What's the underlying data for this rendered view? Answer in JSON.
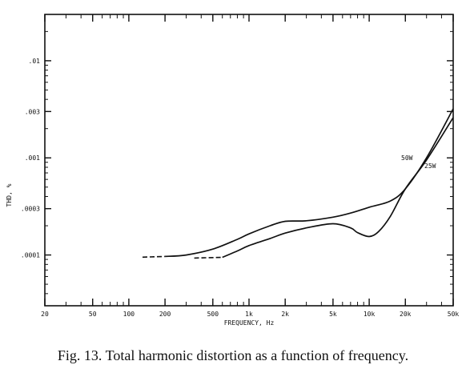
{
  "chart_data": {
    "type": "line",
    "xlabel": "FREQUENCY, Hz",
    "ylabel": "THD, %",
    "xscale": "log",
    "yscale": "log",
    "xlim": [
      20,
      50000
    ],
    "ylim": [
      3e-05,
      0.03
    ],
    "x_ticks": [
      {
        "value": 20,
        "label": "20"
      },
      {
        "value": 50,
        "label": "50"
      },
      {
        "value": 100,
        "label": "100"
      },
      {
        "value": 200,
        "label": "200"
      },
      {
        "value": 500,
        "label": "500"
      },
      {
        "value": 1000,
        "label": "1k"
      },
      {
        "value": 2000,
        "label": "2k"
      },
      {
        "value": 5000,
        "label": "5k"
      },
      {
        "value": 10000,
        "label": "10k"
      },
      {
        "value": 20000,
        "label": "20k"
      },
      {
        "value": 50000,
        "label": "50k"
      }
    ],
    "y_ticks": [
      {
        "value": 0.0001,
        "label": ".0001"
      },
      {
        "value": 0.0003,
        "label": ".0003"
      },
      {
        "value": 0.001,
        "label": ".001"
      },
      {
        "value": 0.003,
        "label": ".003"
      },
      {
        "value": 0.01,
        "label": ".01"
      }
    ],
    "grid": false,
    "series": [
      {
        "name": "50W",
        "dashed_until": 200,
        "x": [
          130,
          200,
          300,
          500,
          800,
          1000,
          1500,
          2000,
          3000,
          5000,
          7000,
          10000,
          15000,
          20000,
          30000,
          50000
        ],
        "y": [
          9.5e-05,
          9.65e-05,
          0.0001,
          0.000115,
          0.000145,
          0.000165,
          0.0002,
          0.000222,
          0.000225,
          0.000245,
          0.00027,
          0.00031,
          0.00036,
          0.00048,
          0.001,
          0.0032
        ]
      },
      {
        "name": "25W",
        "dashed_until": 600,
        "x": [
          350,
          600,
          800,
          1000,
          1500,
          2000,
          3000,
          5000,
          7000,
          8000,
          10000,
          12000,
          15000,
          20000,
          30000,
          50000
        ],
        "y": [
          9.3e-05,
          9.45e-05,
          0.00011,
          0.000125,
          0.000148,
          0.000168,
          0.00019,
          0.00021,
          0.00019,
          0.00017,
          0.000155,
          0.000175,
          0.00025,
          0.00048,
          0.00095,
          0.0026
        ]
      }
    ]
  },
  "caption": "Fig. 13.  Total harmonic distortion as a function of frequency."
}
